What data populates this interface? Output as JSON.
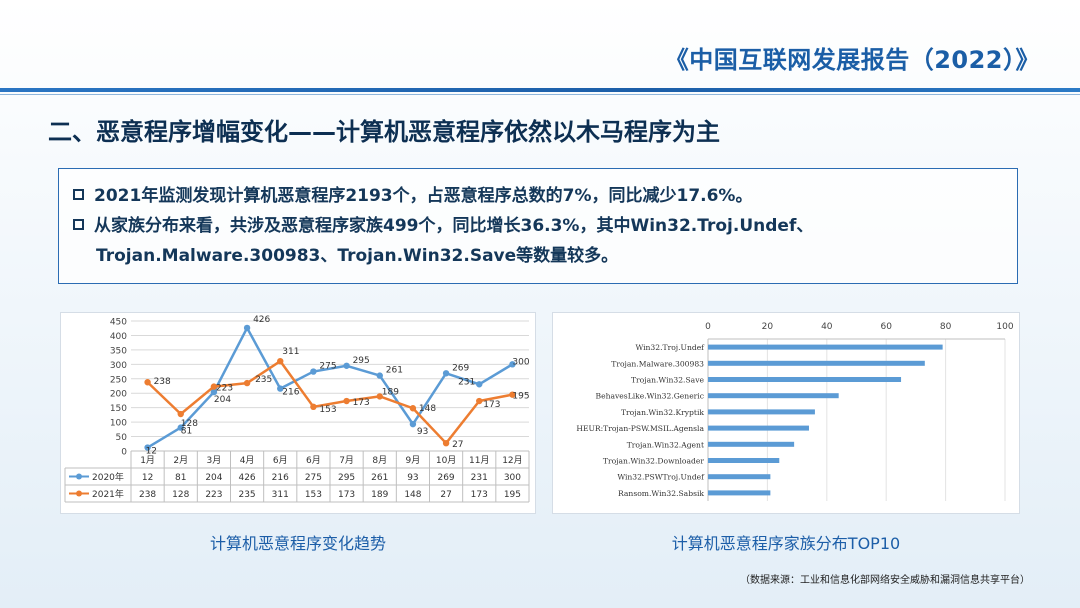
{
  "header": {
    "report_title": "《中国互联网发展报告（2022）》",
    "section_title": "二、恶意程序增幅变化——计算机恶意程序依然以木马程序为主"
  },
  "summary": {
    "bullets": [
      "2021年监测发现计算机恶意程序2193个，占恶意程序总数的7%，同比减少17.6%。",
      "从家族分布来看，共涉及恶意程序家族499个，同比增长36.3%，其中Win32.Troj.Undef、",
      "Trojan.Malware.300983、Trojan.Win32.Save等数量较多。"
    ]
  },
  "captions": {
    "left": "计算机恶意程序变化趋势",
    "right": "计算机恶意程序家族分布TOP10"
  },
  "source": "（数据来源：工业和信息化部网络安全威胁和漏洞信息共享平台）",
  "chart_data": [
    {
      "type": "line",
      "categories": [
        "1月",
        "2月",
        "3月",
        "4月",
        "6月",
        "6月",
        "7月",
        "8月",
        "9月",
        "10月",
        "11月",
        "12月"
      ],
      "series": [
        {
          "name": "2020年",
          "color": "#5b9bd5",
          "values": [
            12,
            81,
            204,
            426,
            216,
            275,
            295,
            261,
            93,
            269,
            231,
            300
          ]
        },
        {
          "name": "2021年",
          "color": "#ed7d31",
          "values": [
            238,
            128,
            223,
            235,
            311,
            153,
            173,
            189,
            148,
            27,
            173,
            195
          ]
        }
      ],
      "ylim": [
        0,
        450
      ],
      "yticks": [
        0,
        50,
        100,
        150,
        200,
        250,
        300,
        350,
        400,
        450
      ],
      "grid": true,
      "legend": "data-table"
    },
    {
      "type": "bar",
      "orientation": "horizontal",
      "color": "#5b9bd5",
      "categories": [
        "Win32.Troj.Undef",
        "Trojan.Malware.300983",
        "Trojan.Win32.Save",
        "BehavesLike.Win32.Generic",
        "Trojan.Win32.Kryptik",
        "HEUR:Trojan-PSW.MSIL.Agensla",
        "Trojan.Win32.Agent",
        "Trojan.Win32.Downloader",
        "Win32.PSWTroj.Undef",
        "Ransom.Win32.Sabsik"
      ],
      "values": [
        79,
        73,
        65,
        44,
        36,
        34,
        29,
        24,
        21,
        21
      ],
      "xlim": [
        0,
        100
      ],
      "xticks": [
        0,
        20,
        40,
        60,
        80,
        100
      ],
      "grid": true
    }
  ]
}
